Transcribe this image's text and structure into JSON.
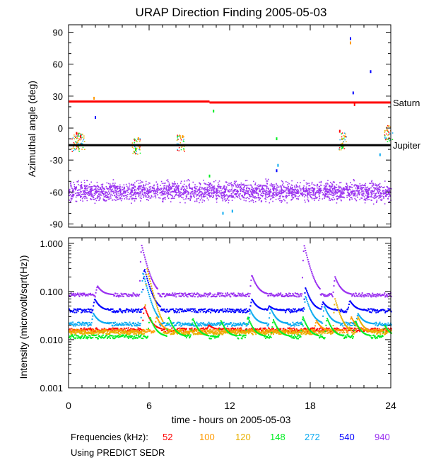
{
  "chart_data": [
    {
      "type": "scatter",
      "title": "URAP Direction Finding  2005-05-03",
      "xlabel": "",
      "ylabel": "Azimuthal angle (deg)",
      "xlim": [
        0,
        24
      ],
      "ylim": [
        -93,
        97
      ],
      "yticks": [
        90,
        60,
        30,
        0,
        -30,
        -60,
        -90
      ],
      "reference_lines": [
        {
          "name": "Saturn",
          "color": "#ff0000",
          "segments": [
            {
              "x": [
                0,
                10.5
              ],
              "y": 25
            },
            {
              "x": [
                10.5,
                24
              ],
              "y": 24
            }
          ]
        },
        {
          "name": "Jupiter",
          "color": "#000000",
          "segments": [
            {
              "x": [
                0,
                24
              ],
              "y": -16
            }
          ]
        }
      ],
      "series": [
        {
          "name": "940",
          "color": "#9a30f0",
          "pattern": "dense band",
          "y_center": -59,
          "y_spread": 8
        },
        {
          "name": "540",
          "color": "#0000ff",
          "points": [
            [
              2,
              10
            ],
            [
              21,
              84
            ],
            [
              21.2,
              33
            ],
            [
              22.5,
              53
            ],
            [
              15.5,
              -40
            ]
          ]
        },
        {
          "name": "52",
          "color": "#ff0000",
          "points": [
            [
              0.6,
              -5
            ],
            [
              0.9,
              -8
            ],
            [
              21.3,
              22
            ],
            [
              20.2,
              -3
            ]
          ]
        },
        {
          "name": "100",
          "color": "#ff9a00",
          "points": [
            [
              1.9,
              28
            ],
            [
              21,
              80
            ],
            [
              5.2,
              -10
            ],
            [
              8.5,
              -8
            ]
          ]
        },
        {
          "name": "148",
          "color": "#00ee22",
          "points": [
            [
              10.8,
              16
            ],
            [
              5,
              -20
            ],
            [
              20.4,
              -18
            ],
            [
              15.5,
              -10
            ],
            [
              10.5,
              -45
            ]
          ]
        },
        {
          "name": "272",
          "color": "#0aaaf0",
          "points": [
            [
              11.5,
              -80
            ],
            [
              12.2,
              -78
            ],
            [
              15.6,
              -35
            ],
            [
              23.2,
              -25
            ]
          ]
        }
      ]
    },
    {
      "type": "line",
      "title": "",
      "xlabel": "time - hours on 2005-05-03",
      "ylabel": "Intensity (microvolt/sqrt(Hz))",
      "xlim": [
        0,
        24
      ],
      "yscale": "log",
      "ylim": [
        0.001,
        1.3
      ],
      "yticks": [
        "1.000",
        "0.100",
        "0.010",
        "0.001"
      ],
      "xticks": [
        0,
        6,
        12,
        18,
        24
      ],
      "series": [
        {
          "name": "940",
          "color": "#9a30f0",
          "baseline": 0.085,
          "spikes": [
            [
              2.1,
              0.13
            ],
            [
              5.4,
              0.9
            ],
            [
              13.6,
              0.22
            ],
            [
              17.5,
              0.9
            ],
            [
              19.8,
              0.2
            ]
          ]
        },
        {
          "name": "540",
          "color": "#0000ff",
          "baseline": 0.04,
          "spikes": [
            [
              1.9,
              0.07
            ],
            [
              5.6,
              0.3
            ],
            [
              13.6,
              0.07
            ],
            [
              14.9,
              0.05
            ],
            [
              17.6,
              0.12
            ],
            [
              18.9,
              0.06
            ],
            [
              20.9,
              0.065
            ]
          ]
        },
        {
          "name": "272",
          "color": "#0aaaf0",
          "baseline": 0.021,
          "spikes": [
            [
              1.8,
              0.035
            ],
            [
              5.5,
              0.25
            ],
            [
              13.5,
              0.04
            ],
            [
              15,
              0.045
            ],
            [
              17.6,
              0.08
            ],
            [
              19,
              0.05
            ],
            [
              21.5,
              0.035
            ]
          ]
        },
        {
          "name": "52",
          "color": "#ff0000",
          "baseline": 0.016,
          "spikes": [
            [
              5.6,
              0.05
            ],
            [
              10.4,
              0.02
            ]
          ]
        },
        {
          "name": "100",
          "color": "#ff9a00",
          "baseline": 0.015,
          "spikes": [
            [
              6.5,
              0.03
            ],
            [
              18.4,
              0.025
            ],
            [
              21,
              0.03
            ]
          ]
        },
        {
          "name": "120",
          "color": "#e8b000",
          "baseline": 0.014,
          "spikes": [
            [
              5.8,
              0.3
            ],
            [
              19.8,
              0.07
            ],
            [
              21.5,
              0.03
            ]
          ]
        },
        {
          "name": "148",
          "color": "#00ee22",
          "baseline": 0.0115,
          "spikes": [
            [
              6,
              0.03
            ],
            [
              7.4,
              0.03
            ],
            [
              9.2,
              0.028
            ],
            [
              11.3,
              0.025
            ],
            [
              13.3,
              0.03
            ],
            [
              15.2,
              0.026
            ],
            [
              17.4,
              0.03
            ],
            [
              19.2,
              0.028
            ],
            [
              21.3,
              0.025
            ],
            [
              23.5,
              0.02
            ]
          ]
        }
      ]
    }
  ],
  "legend": {
    "label": "Frequencies (kHz):",
    "items": [
      {
        "text": "52",
        "color": "#ff0000"
      },
      {
        "text": "100",
        "color": "#ff9a00"
      },
      {
        "text": "120",
        "color": "#e8b000"
      },
      {
        "text": "148",
        "color": "#00ee22"
      },
      {
        "text": "272",
        "color": "#0aaaf0"
      },
      {
        "text": "540",
        "color": "#0000ff"
      },
      {
        "text": "940",
        "color": "#9a30f0"
      }
    ]
  },
  "footer_note": "Using PREDICT SEDR"
}
